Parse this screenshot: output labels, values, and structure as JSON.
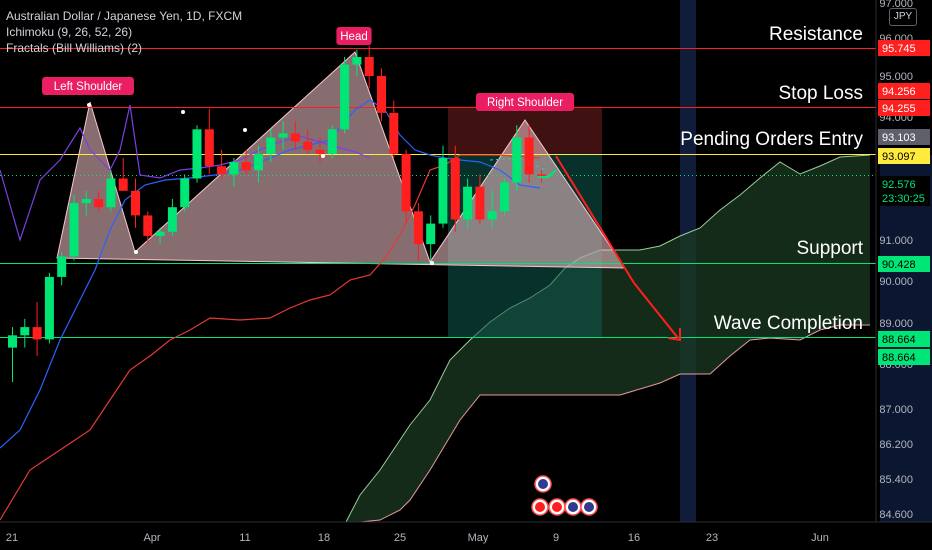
{
  "legend": {
    "symbol": "Australian Dollar / Japanese Yen, 1D, FXCM",
    "ichimoku": "Ichimoku (9, 26, 52, 26)",
    "fractals": "Fractals (Bill Williams) (2)"
  },
  "currency": "JPY",
  "colors": {
    "background": "#000000",
    "bull": "#00e676",
    "bear": "#ff1f1f",
    "conversion_line": "#2962ff",
    "base_line": "#e53935",
    "lagging_span": "#7b3fe4",
    "cloud_fill": "#1b3a22",
    "pattern_fill": "#f8c7cc",
    "resistance": "#ff1f1f",
    "support": "#00e676",
    "entry": "#ffeb3b",
    "tag_pink": "#e91e63"
  },
  "chart_data": {
    "type": "candlestick",
    "title": "Australian Dollar / Japanese Yen, 1D, FXCM",
    "ylim": [
      84.3,
      97.2
    ],
    "y_ticks": [
      "97.000",
      "96.000",
      "95.000",
      "94.000",
      "92.000",
      "91.000",
      "90.000",
      "89.000",
      "88.000",
      "87.000",
      "86.200",
      "85.400",
      "84.600"
    ],
    "x_ticks": [
      "21",
      "Apr",
      "11",
      "18",
      "25",
      "May",
      "9",
      "16",
      "23",
      "Jun"
    ],
    "levels": [
      {
        "label": "Resistance",
        "value": 95.745,
        "tag": "95.745",
        "color": "#ff1f1f"
      },
      {
        "label": "Stop Loss",
        "value": 94.256,
        "tag": "94.256",
        "color": "#ff1f1f"
      },
      {
        "label": "",
        "value": 94.255,
        "tag": "94.255",
        "color": "#ff1f1f"
      },
      {
        "label": "",
        "value": 93.103,
        "tag": "93.103",
        "color": "#5d606b"
      },
      {
        "label": "Pending Orders Entry",
        "value": 93.097,
        "tag": "93.097",
        "color": "#ffeb3b"
      },
      {
        "label": "",
        "value": 92.576,
        "tag": "92.576",
        "countdown": "23:30:25",
        "color": "#00e676"
      },
      {
        "label": "Support",
        "value": 90.428,
        "tag": "90.428",
        "color": "#00e676"
      },
      {
        "label": "Wave Completion",
        "value": 88.664,
        "tag": "88.664",
        "color": "#00e676"
      },
      {
        "label": "",
        "value": 88.664,
        "tag": "88.664",
        "color": "#00e676"
      }
    ],
    "pattern_labels": [
      "Left Shoulder",
      "Head",
      "Right Shoulder"
    ],
    "candles": [
      {
        "o": 88.4,
        "h": 88.9,
        "l": 87.6,
        "c": 88.7
      },
      {
        "o": 88.7,
        "h": 89.1,
        "l": 88.4,
        "c": 88.9
      },
      {
        "o": 88.9,
        "h": 89.5,
        "l": 88.2,
        "c": 88.6
      },
      {
        "o": 88.6,
        "h": 90.2,
        "l": 88.5,
        "c": 90.1
      },
      {
        "o": 90.1,
        "h": 90.7,
        "l": 89.9,
        "c": 90.6
      },
      {
        "o": 90.6,
        "h": 92.1,
        "l": 90.5,
        "c": 91.9
      },
      {
        "o": 91.9,
        "h": 92.2,
        "l": 91.6,
        "c": 92.0
      },
      {
        "o": 92.0,
        "h": 92.2,
        "l": 91.7,
        "c": 91.8
      },
      {
        "o": 91.8,
        "h": 92.7,
        "l": 91.7,
        "c": 92.5
      },
      {
        "o": 92.5,
        "h": 93.0,
        "l": 92.2,
        "c": 92.2
      },
      {
        "o": 92.2,
        "h": 92.5,
        "l": 91.3,
        "c": 91.6
      },
      {
        "o": 91.6,
        "h": 91.7,
        "l": 90.9,
        "c": 91.1
      },
      {
        "o": 91.1,
        "h": 91.3,
        "l": 90.9,
        "c": 91.2
      },
      {
        "o": 91.2,
        "h": 92.0,
        "l": 91.1,
        "c": 91.8
      },
      {
        "o": 91.8,
        "h": 92.6,
        "l": 91.7,
        "c": 92.5
      },
      {
        "o": 92.5,
        "h": 93.8,
        "l": 92.4,
        "c": 93.7
      },
      {
        "o": 93.7,
        "h": 94.2,
        "l": 92.6,
        "c": 92.8
      },
      {
        "o": 92.8,
        "h": 93.2,
        "l": 92.5,
        "c": 92.6
      },
      {
        "o": 92.6,
        "h": 93.0,
        "l": 92.3,
        "c": 92.9
      },
      {
        "o": 92.9,
        "h": 93.2,
        "l": 92.6,
        "c": 92.7
      },
      {
        "o": 92.7,
        "h": 93.3,
        "l": 92.4,
        "c": 93.1
      },
      {
        "o": 93.1,
        "h": 93.7,
        "l": 92.9,
        "c": 93.5
      },
      {
        "o": 93.5,
        "h": 93.9,
        "l": 93.2,
        "c": 93.6
      },
      {
        "o": 93.6,
        "h": 93.9,
        "l": 93.2,
        "c": 93.4
      },
      {
        "o": 93.4,
        "h": 93.7,
        "l": 93.1,
        "c": 93.2
      },
      {
        "o": 93.2,
        "h": 93.5,
        "l": 92.9,
        "c": 93.1
      },
      {
        "o": 93.1,
        "h": 93.8,
        "l": 93.0,
        "c": 93.7
      },
      {
        "o": 93.7,
        "h": 95.5,
        "l": 93.6,
        "c": 95.3
      },
      {
        "o": 95.3,
        "h": 95.7,
        "l": 95.0,
        "c": 95.5
      },
      {
        "o": 95.5,
        "h": 95.8,
        "l": 94.7,
        "c": 95.0
      },
      {
        "o": 95.0,
        "h": 95.2,
        "l": 93.9,
        "c": 94.1
      },
      {
        "o": 94.1,
        "h": 94.4,
        "l": 93.0,
        "c": 93.1
      },
      {
        "o": 93.1,
        "h": 93.2,
        "l": 91.4,
        "c": 91.7
      },
      {
        "o": 91.7,
        "h": 91.9,
        "l": 90.5,
        "c": 90.9
      },
      {
        "o": 90.9,
        "h": 91.6,
        "l": 90.5,
        "c": 91.4
      },
      {
        "o": 91.4,
        "h": 93.3,
        "l": 91.3,
        "c": 93.0
      },
      {
        "o": 93.0,
        "h": 93.3,
        "l": 91.2,
        "c": 91.5
      },
      {
        "o": 91.5,
        "h": 92.5,
        "l": 91.3,
        "c": 92.3
      },
      {
        "o": 92.3,
        "h": 92.6,
        "l": 91.4,
        "c": 91.5
      },
      {
        "o": 91.5,
        "h": 92.2,
        "l": 91.3,
        "c": 91.7
      },
      {
        "o": 91.7,
        "h": 92.5,
        "l": 91.6,
        "c": 92.4
      },
      {
        "o": 92.4,
        "h": 93.8,
        "l": 92.2,
        "c": 93.5
      },
      {
        "o": 93.5,
        "h": 93.8,
        "l": 92.4,
        "c": 92.6
      },
      {
        "o": 92.6,
        "h": 92.7,
        "l": 92.4,
        "c": 92.58
      }
    ]
  }
}
